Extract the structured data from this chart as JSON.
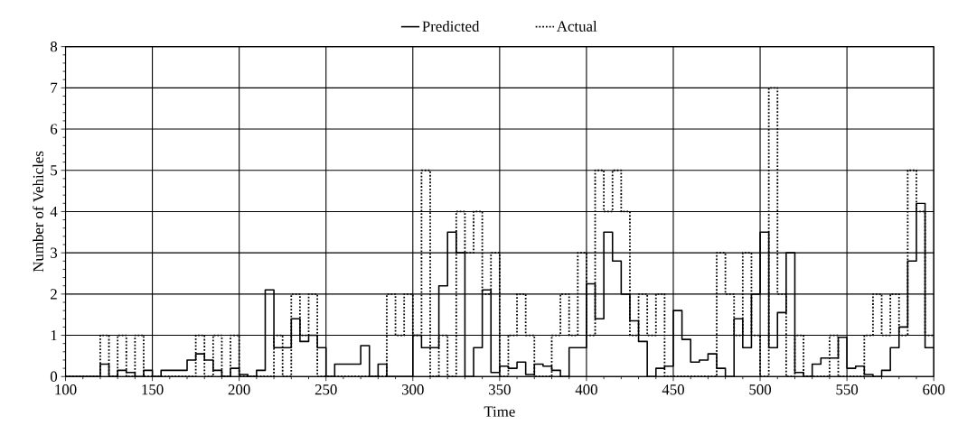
{
  "chart_data": {
    "type": "step",
    "xlabel": "Time",
    "ylabel": "Number of Vehicles",
    "x": [
      100,
      105,
      110,
      115,
      120,
      125,
      130,
      135,
      140,
      145,
      150,
      155,
      160,
      165,
      170,
      175,
      180,
      185,
      190,
      195,
      200,
      205,
      210,
      215,
      220,
      225,
      230,
      235,
      240,
      245,
      250,
      255,
      260,
      265,
      270,
      275,
      280,
      285,
      290,
      295,
      300,
      305,
      310,
      315,
      320,
      325,
      330,
      335,
      340,
      345,
      350,
      355,
      360,
      365,
      370,
      375,
      380,
      385,
      390,
      395,
      400,
      405,
      410,
      415,
      420,
      425,
      430,
      435,
      440,
      445,
      450,
      455,
      460,
      465,
      470,
      475,
      480,
      485,
      490,
      495,
      500,
      505,
      510,
      515,
      520,
      525,
      530,
      535,
      540,
      545,
      550,
      555,
      560,
      565,
      570,
      575,
      580,
      585,
      590,
      595,
      600
    ],
    "series": [
      {
        "name": "Predicted",
        "color": "#000000",
        "line_style": "solid",
        "values": [
          0,
          0,
          0,
          0,
          0.3,
          0,
          0.15,
          0.1,
          0,
          0.15,
          0,
          0.15,
          0.15,
          0.15,
          0.4,
          0.55,
          0.4,
          0.15,
          0,
          0.2,
          0.05,
          0,
          0.15,
          2.1,
          0.7,
          0.7,
          1.4,
          0.85,
          1.0,
          0.7,
          0,
          0.3,
          0.3,
          0.3,
          0.75,
          0,
          0.3,
          0,
          0,
          0,
          1.0,
          0.7,
          0.7,
          2.2,
          3.5,
          3.0,
          0,
          0.7,
          2.1,
          0.1,
          0.25,
          0.2,
          0.35,
          0.05,
          0.3,
          0.25,
          0.15,
          0,
          0.7,
          0.7,
          2.25,
          1.4,
          3.5,
          2.8,
          2.0,
          1.35,
          0.85,
          0,
          0.2,
          0.25,
          1.6,
          0.9,
          0.35,
          0.4,
          0.55,
          0.2,
          0,
          1.4,
          0.7,
          2.0,
          3.5,
          0.7,
          1.55,
          3.0,
          0.1,
          0,
          0.3,
          0.45,
          0.45,
          0.95,
          0.2,
          0.25,
          0.05,
          0,
          0.15,
          0.7,
          1.2,
          2.8,
          4.2,
          0.7,
          0.7
        ]
      },
      {
        "name": "Actual",
        "color": "#000000",
        "line_style": "dotted",
        "values": [
          0,
          0,
          0,
          0,
          1,
          0,
          1,
          0,
          1,
          0,
          0,
          0,
          0,
          0,
          0,
          1,
          0,
          1,
          0,
          1,
          0,
          0,
          0,
          0,
          1,
          0,
          2,
          1,
          2,
          0,
          0,
          0,
          0,
          0,
          0,
          0,
          0,
          2,
          1,
          2,
          1,
          5,
          0,
          1,
          0,
          4,
          3,
          4,
          2,
          3,
          0,
          1,
          2,
          1,
          0,
          0,
          1,
          2,
          1,
          3,
          1,
          5,
          4,
          5,
          4,
          1,
          2,
          1,
          2,
          0,
          0,
          0,
          0,
          0,
          0,
          3,
          2,
          1,
          3,
          1,
          0,
          7,
          2,
          0,
          1,
          0,
          0,
          0,
          1,
          0,
          0,
          0,
          1,
          2,
          1,
          2,
          1,
          5,
          4,
          1,
          1
        ]
      }
    ],
    "xlim": [
      100,
      600
    ],
    "ylim": [
      0,
      8
    ],
    "xticks": [
      100,
      150,
      200,
      250,
      300,
      350,
      400,
      450,
      500,
      550,
      600
    ],
    "yticks": [
      0,
      1,
      2,
      3,
      4,
      5,
      6,
      7,
      8
    ],
    "grid": true,
    "legend": "top"
  }
}
